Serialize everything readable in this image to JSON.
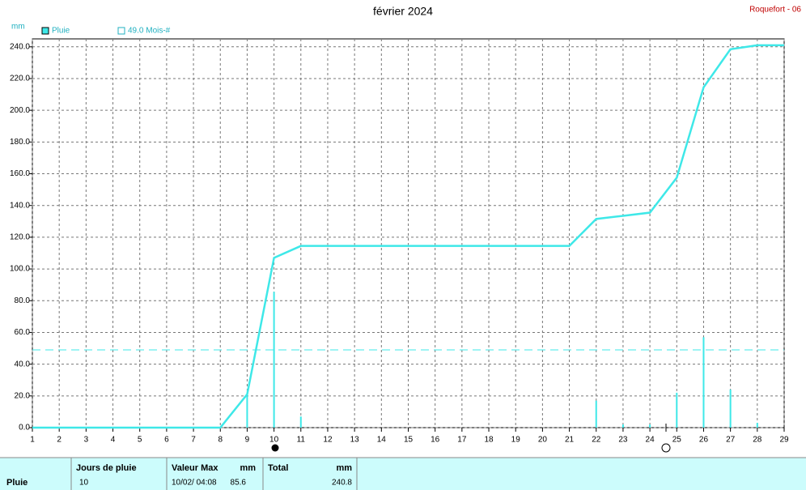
{
  "chart_data": {
    "type": "bar",
    "title": "février 2024",
    "station": "Roquefort - 06",
    "y_unit": "mm",
    "x": [
      1,
      2,
      3,
      4,
      5,
      6,
      7,
      8,
      9,
      10,
      11,
      12,
      13,
      14,
      15,
      16,
      17,
      18,
      19,
      20,
      21,
      22,
      23,
      24,
      25,
      26,
      27,
      28,
      29
    ],
    "xlim": [
      1,
      29
    ],
    "xticks": [
      1,
      2,
      3,
      4,
      5,
      6,
      7,
      8,
      9,
      10,
      11,
      12,
      13,
      14,
      15,
      16,
      17,
      18,
      19,
      20,
      21,
      22,
      23,
      24,
      25,
      26,
      27,
      28,
      29
    ],
    "ylim": [
      0,
      245
    ],
    "yticks": [
      {
        "value": 0,
        "label": "0.0"
      },
      {
        "value": 20,
        "label": "20.0"
      },
      {
        "value": 40,
        "label": "40.0"
      },
      {
        "value": 60,
        "label": "60.0"
      },
      {
        "value": 80,
        "label": "80.0"
      },
      {
        "value": 100,
        "label": "100.0"
      },
      {
        "value": 120,
        "label": "120.0"
      },
      {
        "value": 140,
        "label": "140.0"
      },
      {
        "value": 160,
        "label": "160.0"
      },
      {
        "value": 180,
        "label": "180.0"
      },
      {
        "value": 200,
        "label": "200.0"
      },
      {
        "value": 220,
        "label": "220.0"
      },
      {
        "value": 240,
        "label": "240.0"
      }
    ],
    "grid": true,
    "series": [
      {
        "name": "Pluie",
        "color": "#3ee8e8",
        "values": [
          0,
          0,
          0,
          0,
          0,
          0,
          0,
          0,
          21,
          85.6,
          7,
          0,
          0,
          0,
          0,
          0,
          0,
          0,
          0,
          0,
          0,
          17,
          2,
          2,
          22,
          57,
          24,
          3,
          0
        ]
      }
    ],
    "cumulative": {
      "color": "#3ee8e8",
      "values": [
        0,
        0,
        0,
        0,
        0,
        0,
        0,
        0,
        21,
        107,
        114.5,
        114.5,
        114.5,
        114.5,
        114.5,
        114.5,
        114.5,
        114.5,
        114.5,
        114.5,
        114.5,
        131.5,
        133.5,
        135.5,
        157.5,
        214.5,
        238.5,
        241,
        241
      ]
    },
    "reference": {
      "name": "49.0 Mois-#",
      "value": 49,
      "color": "#3ee8e8"
    },
    "summary": {
      "label": "Pluie",
      "rain_days_header": "Jours de pluie",
      "rain_days": 10,
      "max_header": "Valeur Max",
      "max_unit": "mm",
      "max_date": "10/02/ 04:08",
      "max_value": 85.6,
      "total_header": "Total",
      "total_unit": "mm",
      "total_value": 240.8
    }
  }
}
